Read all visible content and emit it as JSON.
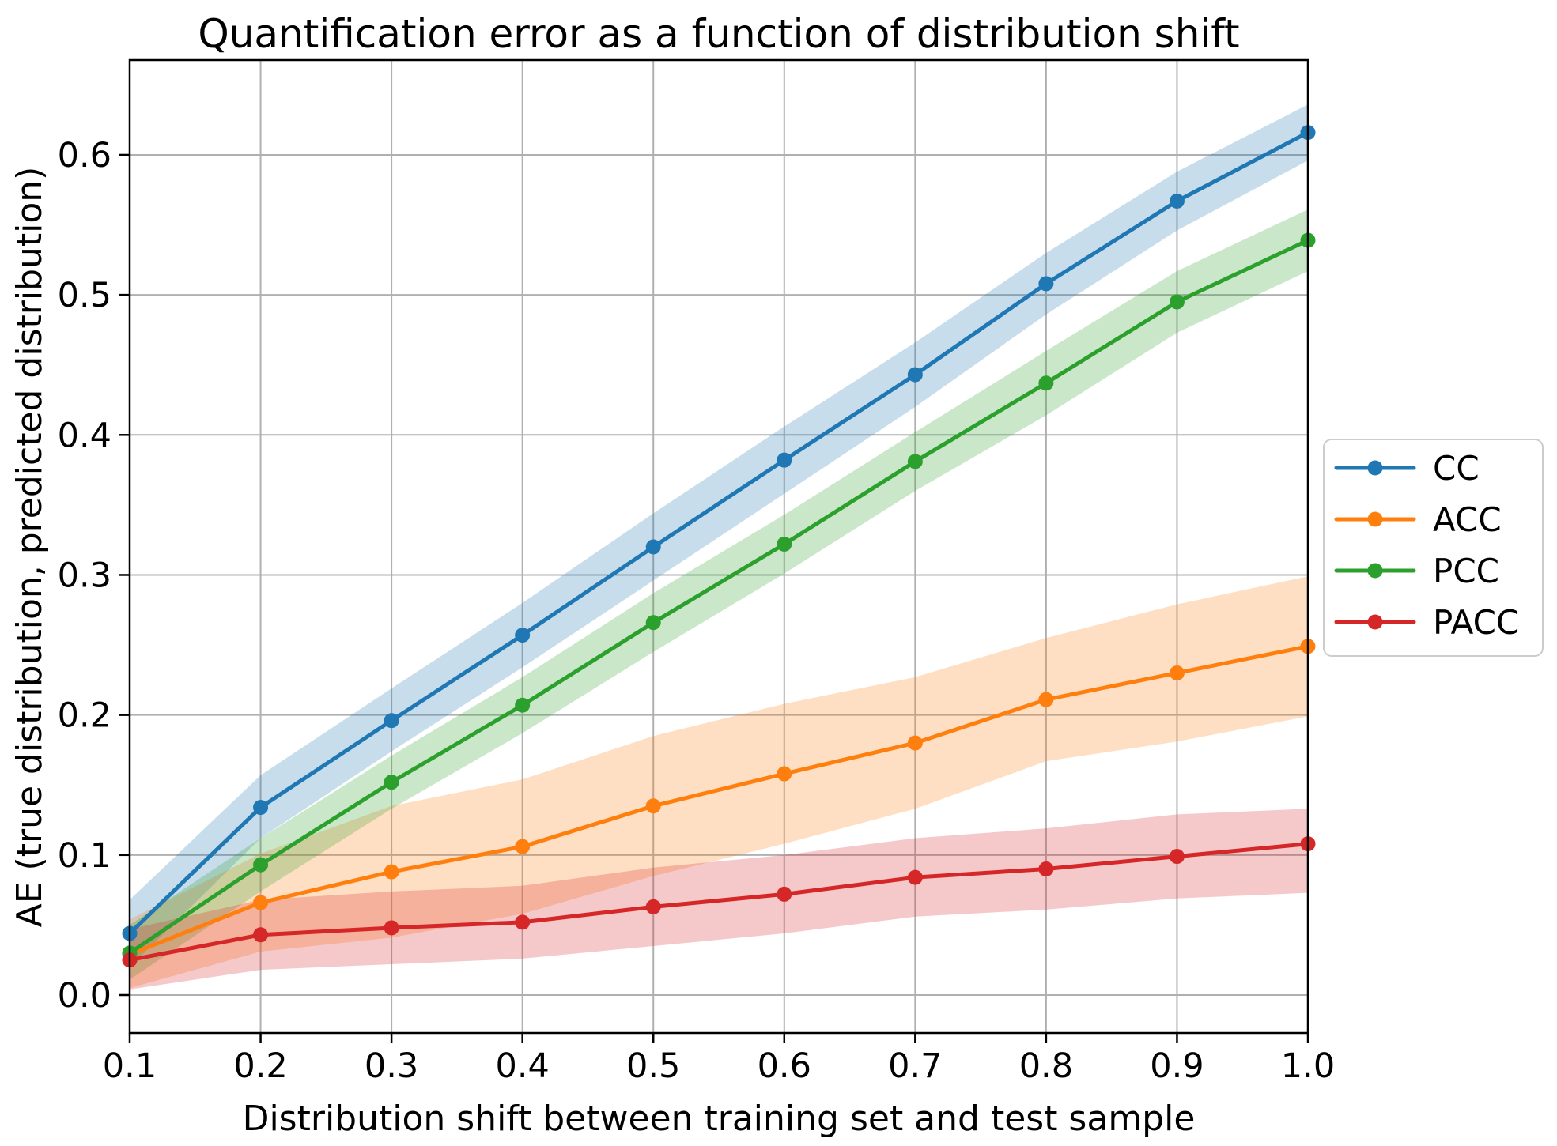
{
  "figure": {
    "background": "#ffffff",
    "spine_color": "#000000",
    "grid_color": "#b0b0b0"
  },
  "chart_data": {
    "type": "line",
    "title": "Quantification error as a function of distribution shift",
    "xlabel": "Distribution shift between training set and test sample",
    "ylabel": "AE (true distribution, predicted distribution)",
    "grid": true,
    "legend_position": "outside-center-right",
    "x": [
      0.1,
      0.2,
      0.3,
      0.4,
      0.5,
      0.6,
      0.7,
      0.8,
      0.9,
      1.0
    ],
    "xlim": [
      0.1,
      1.0
    ],
    "ylim": [
      -0.0271,
      0.6677
    ],
    "xtick_labels": [
      "0.1",
      "0.2",
      "0.3",
      "0.4",
      "0.5",
      "0.6",
      "0.7",
      "0.8",
      "0.9",
      "1.0"
    ],
    "xtick_values": [
      0.1,
      0.2,
      0.3,
      0.4,
      0.5,
      0.6,
      0.7,
      0.8,
      0.9,
      1.0
    ],
    "ytick_labels": [
      "0.0",
      "0.1",
      "0.2",
      "0.3",
      "0.4",
      "0.5",
      "0.6"
    ],
    "ytick_values": [
      0.0,
      0.1,
      0.2,
      0.3,
      0.4,
      0.5,
      0.6
    ],
    "series": [
      {
        "name": "CC",
        "color": "#1f77b4",
        "band_opacity": 0.25,
        "values": [
          0.044,
          0.134,
          0.196,
          0.257,
          0.32,
          0.382,
          0.443,
          0.508,
          0.567,
          0.616
        ],
        "band_low": [
          0.02,
          0.112,
          0.174,
          0.234,
          0.296,
          0.358,
          0.42,
          0.486,
          0.546,
          0.596
        ],
        "band_high": [
          0.068,
          0.157,
          0.219,
          0.28,
          0.344,
          0.406,
          0.466,
          0.53,
          0.588,
          0.636
        ]
      },
      {
        "name": "ACC",
        "color": "#ff7f0e",
        "band_opacity": 0.25,
        "values": [
          0.029,
          0.066,
          0.088,
          0.106,
          0.135,
          0.158,
          0.18,
          0.211,
          0.23,
          0.249
        ],
        "band_low": [
          0.005,
          0.031,
          0.041,
          0.058,
          0.085,
          0.108,
          0.133,
          0.167,
          0.181,
          0.199
        ],
        "band_high": [
          0.054,
          0.101,
          0.135,
          0.154,
          0.185,
          0.208,
          0.227,
          0.255,
          0.279,
          0.299
        ]
      },
      {
        "name": "PCC",
        "color": "#2ca02c",
        "band_opacity": 0.25,
        "values": [
          0.03,
          0.093,
          0.152,
          0.207,
          0.266,
          0.322,
          0.381,
          0.437,
          0.495,
          0.539
        ],
        "band_low": [
          0.011,
          0.074,
          0.133,
          0.187,
          0.245,
          0.301,
          0.36,
          0.414,
          0.473,
          0.517
        ],
        "band_high": [
          0.05,
          0.112,
          0.171,
          0.227,
          0.287,
          0.343,
          0.402,
          0.46,
          0.517,
          0.561
        ]
      },
      {
        "name": "PACC",
        "color": "#d62728",
        "band_opacity": 0.25,
        "values": [
          0.025,
          0.043,
          0.048,
          0.052,
          0.063,
          0.072,
          0.084,
          0.09,
          0.099,
          0.108
        ],
        "band_low": [
          0.004,
          0.018,
          0.022,
          0.026,
          0.035,
          0.044,
          0.056,
          0.061,
          0.069,
          0.073
        ],
        "band_high": [
          0.047,
          0.068,
          0.074,
          0.078,
          0.091,
          0.1,
          0.112,
          0.119,
          0.129,
          0.133
        ]
      }
    ],
    "legend": {
      "entries": [
        "CC",
        "ACC",
        "PCC",
        "PACC"
      ]
    }
  }
}
